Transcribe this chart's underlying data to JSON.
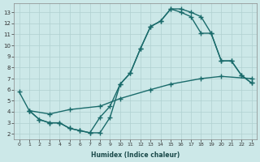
{
  "xlabel": "Humidex (Indice chaleur)",
  "bg_color": "#cce8e8",
  "grid_color": "#b0d0d0",
  "line_color": "#1a6b6b",
  "marker": "+",
  "markersize": 4,
  "linewidth": 1.0,
  "xlim": [
    -0.5,
    23.5
  ],
  "ylim": [
    1.5,
    13.8
  ],
  "xticks": [
    0,
    1,
    2,
    3,
    4,
    5,
    6,
    7,
    8,
    9,
    10,
    11,
    12,
    13,
    14,
    15,
    16,
    17,
    18,
    19,
    20,
    21,
    22,
    23
  ],
  "yticks": [
    2,
    3,
    4,
    5,
    6,
    7,
    8,
    9,
    10,
    11,
    12,
    13
  ],
  "line1_x": [
    0,
    1,
    2,
    3,
    4,
    5,
    6,
    7,
    8,
    9,
    10,
    11,
    12,
    13,
    14,
    15,
    16,
    17,
    18,
    19,
    20,
    21,
    22,
    23
  ],
  "line1_y": [
    5.8,
    4.1,
    3.3,
    3.0,
    3.0,
    2.5,
    2.3,
    2.1,
    2.1,
    3.5,
    6.5,
    7.5,
    9.7,
    11.7,
    12.2,
    13.3,
    13.3,
    13.0,
    12.6,
    11.1,
    8.6,
    8.6,
    7.3,
    6.6
  ],
  "line2_x": [
    1,
    3,
    5,
    8,
    10,
    13,
    15,
    18,
    20,
    23
  ],
  "line2_y": [
    4.1,
    3.8,
    4.2,
    4.5,
    5.2,
    6.0,
    6.5,
    7.0,
    7.2,
    7.0
  ],
  "line3_x": [
    1,
    2,
    3,
    4,
    5,
    6,
    7,
    8,
    9,
    10,
    11,
    12,
    13,
    14,
    15,
    16,
    17,
    18,
    19,
    20,
    21,
    22,
    23
  ],
  "line3_y": [
    4.1,
    3.3,
    3.0,
    3.0,
    2.5,
    2.3,
    2.1,
    3.5,
    4.5,
    6.5,
    7.5,
    9.7,
    11.7,
    12.2,
    13.3,
    13.0,
    12.6,
    11.1,
    11.1,
    8.6,
    8.6,
    7.3,
    6.6
  ]
}
